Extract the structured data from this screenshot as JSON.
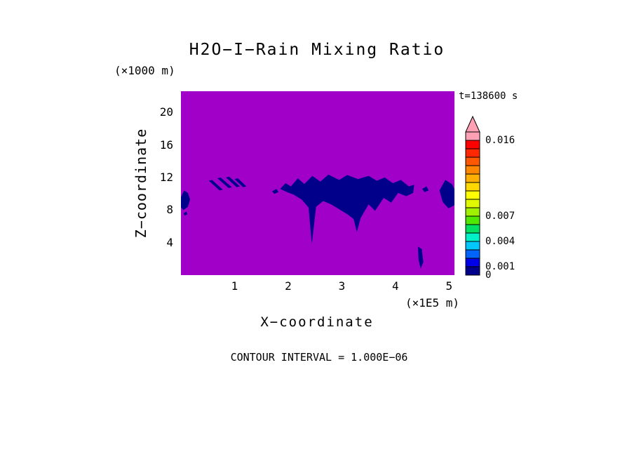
{
  "chart_data": {
    "type": "heatmap",
    "title": "H2O−I−Rain Mixing Ratio",
    "time_annotation": "t=138600 s",
    "contour_interval": "CONTOUR INTERVAL = 1.000E−06",
    "xlabel": "X−coordinate",
    "x_unit": "(×1E5 m)",
    "x_ticks": [
      1,
      2,
      3,
      4,
      5
    ],
    "xlim": [
      0,
      5.1
    ],
    "ylabel": "Z−coordinate",
    "y_unit": "(×1000 m)",
    "y_ticks": [
      4,
      8,
      12,
      16,
      20
    ],
    "ylim": [
      0,
      22.6
    ],
    "background_color": "#A000C8",
    "feature_color": "#00008B",
    "colorbar": {
      "step": 0.001,
      "labels": [
        {
          "value": 0,
          "text": "0"
        },
        {
          "value": 0.001,
          "text": "0.001"
        },
        {
          "value": 0.004,
          "text": "0.004"
        },
        {
          "value": 0.007,
          "text": "0.007"
        },
        {
          "value": 0.016,
          "text": "0.016"
        }
      ],
      "colors": [
        "#00008B",
        "#0000E8",
        "#0064FF",
        "#00C8FF",
        "#00F0C8",
        "#00E060",
        "#50E800",
        "#A0F000",
        "#E0F800",
        "#FFFF00",
        "#FFD800",
        "#FFB000",
        "#FF8800",
        "#FF5800",
        "#FF2800",
        "#FF0000",
        "#FFA0B4"
      ]
    },
    "features": [
      {
        "name": "rain-cell-left-edge",
        "points": [
          [
            0,
            9.6
          ],
          [
            0.06,
            10.4
          ],
          [
            0.13,
            10.1
          ],
          [
            0.17,
            9.3
          ],
          [
            0.13,
            8.4
          ],
          [
            0.05,
            8.0
          ],
          [
            0,
            8.3
          ]
        ]
      },
      {
        "name": "rain-speck-left",
        "points": [
          [
            0.05,
            7.6
          ],
          [
            0.1,
            7.8
          ],
          [
            0.12,
            7.5
          ],
          [
            0.07,
            7.3
          ]
        ]
      },
      {
        "name": "rain-streak-1",
        "points": [
          [
            0.52,
            11.6
          ],
          [
            0.58,
            11.7
          ],
          [
            0.78,
            10.5
          ],
          [
            0.72,
            10.4
          ]
        ]
      },
      {
        "name": "rain-streak-2",
        "points": [
          [
            0.68,
            11.9
          ],
          [
            0.74,
            12.0
          ],
          [
            0.95,
            10.8
          ],
          [
            0.89,
            10.7
          ]
        ]
      },
      {
        "name": "rain-streak-3",
        "points": [
          [
            0.84,
            12.0
          ],
          [
            0.9,
            12.1
          ],
          [
            1.1,
            10.9
          ],
          [
            1.04,
            10.8
          ]
        ]
      },
      {
        "name": "rain-streak-4",
        "points": [
          [
            1.0,
            11.8
          ],
          [
            1.06,
            11.9
          ],
          [
            1.22,
            10.9
          ],
          [
            1.16,
            10.8
          ]
        ]
      },
      {
        "name": "rain-speck-mid",
        "points": [
          [
            1.7,
            10.3
          ],
          [
            1.78,
            10.6
          ],
          [
            1.82,
            10.2
          ],
          [
            1.74,
            10.0
          ]
        ]
      },
      {
        "name": "rain-cell-main-cluster",
        "points": [
          [
            1.85,
            10.6
          ],
          [
            1.95,
            11.3
          ],
          [
            2.05,
            10.9
          ],
          [
            2.18,
            11.9
          ],
          [
            2.3,
            11.2
          ],
          [
            2.45,
            12.2
          ],
          [
            2.6,
            11.5
          ],
          [
            2.75,
            12.35
          ],
          [
            2.95,
            11.7
          ],
          [
            3.1,
            12.3
          ],
          [
            3.3,
            11.8
          ],
          [
            3.5,
            12.2
          ],
          [
            3.65,
            11.6
          ],
          [
            3.8,
            12.0
          ],
          [
            3.95,
            11.3
          ],
          [
            4.1,
            11.7
          ],
          [
            4.25,
            10.9
          ],
          [
            4.35,
            11.1
          ],
          [
            4.33,
            10.1
          ],
          [
            4.2,
            9.7
          ],
          [
            4.05,
            10.1
          ],
          [
            3.92,
            8.9
          ],
          [
            3.78,
            9.5
          ],
          [
            3.62,
            7.9
          ],
          [
            3.5,
            8.7
          ],
          [
            3.35,
            7.0
          ],
          [
            3.28,
            5.3
          ],
          [
            3.22,
            6.9
          ],
          [
            3.1,
            7.5
          ],
          [
            2.95,
            8.1
          ],
          [
            2.8,
            8.7
          ],
          [
            2.65,
            9.1
          ],
          [
            2.52,
            8.4
          ],
          [
            2.44,
            3.8
          ],
          [
            2.38,
            8.3
          ],
          [
            2.25,
            9.3
          ],
          [
            2.1,
            9.9
          ],
          [
            1.98,
            10.2
          ]
        ]
      },
      {
        "name": "rain-speck-right",
        "points": [
          [
            4.5,
            10.6
          ],
          [
            4.58,
            10.9
          ],
          [
            4.62,
            10.4
          ],
          [
            4.54,
            10.2
          ]
        ]
      },
      {
        "name": "rain-streak-low",
        "points": [
          [
            4.42,
            3.5
          ],
          [
            4.49,
            3.2
          ],
          [
            4.52,
            1.6
          ],
          [
            4.47,
            0.8
          ],
          [
            4.43,
            1.9
          ]
        ]
      },
      {
        "name": "rain-cell-right-edge",
        "points": [
          [
            4.82,
            10.4
          ],
          [
            4.93,
            11.7
          ],
          [
            5.05,
            11.2
          ],
          [
            5.1,
            10.6
          ],
          [
            5.1,
            8.6
          ],
          [
            4.99,
            8.2
          ],
          [
            4.88,
            9.0
          ]
        ]
      }
    ]
  }
}
